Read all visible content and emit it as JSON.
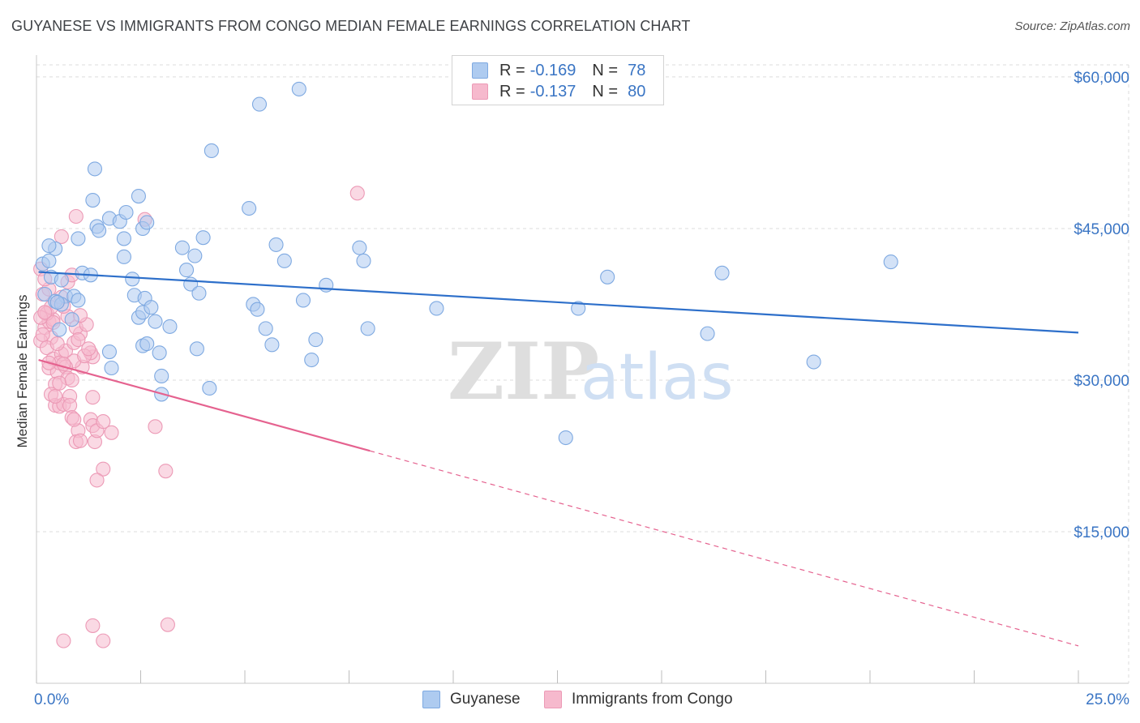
{
  "title": "GUYANESE VS IMMIGRANTS FROM CONGO MEDIAN FEMALE EARNINGS CORRELATION CHART",
  "source": "Source: ZipAtlas.com",
  "watermark": {
    "zip": "ZIP",
    "atlas": "atlas"
  },
  "colors": {
    "blue": "#3a75c4",
    "blue_fill": "#aecbf0",
    "blue_line": "#2d6fca",
    "pink": "#e8739a",
    "pink_fill": "#f6b9cd",
    "pink_line": "#e5628f",
    "grid": "#dcdcdc",
    "axis_text_blue": "#3a75c4"
  },
  "legend": {
    "rows": [
      {
        "r_label": "R =",
        "r_value": "-0.169",
        "n_label": "N =",
        "n_value": "78"
      },
      {
        "r_label": "R =",
        "r_value": "-0.137",
        "n_label": "N =",
        "n_value": "80"
      }
    ]
  },
  "bottom_legend": [
    "Guyanese",
    "Immigrants from Congo"
  ],
  "chart_data": {
    "type": "scatter",
    "title": "GUYANESE VS IMMIGRANTS FROM CONGO MEDIAN FEMALE EARNINGS CORRELATION CHART",
    "xlabel": "",
    "ylabel": "Median Female Earnings",
    "xlim": [
      0,
      25
    ],
    "ylim": [
      0,
      62000
    ],
    "x_tick_labels": [
      "0.0%",
      "25.0%"
    ],
    "y_ticks": [
      15000,
      30000,
      45000,
      60000
    ],
    "y_tick_labels": [
      "$15,000",
      "$30,000",
      "$45,000",
      "$60,000"
    ],
    "series": [
      {
        "name": "Guyanese",
        "R": -0.169,
        "N": 78,
        "trend": {
          "x0": 0.05,
          "y0": 40700,
          "x1": 25,
          "y1": 34700
        },
        "points": [
          [
            0.15,
            41500
          ],
          [
            0.3,
            41800
          ],
          [
            0.45,
            43000
          ],
          [
            0.3,
            43300
          ],
          [
            0.2,
            38500
          ],
          [
            0.35,
            40200
          ],
          [
            0.45,
            37800
          ],
          [
            0.6,
            39900
          ],
          [
            0.7,
            38300
          ],
          [
            0.9,
            38300
          ],
          [
            1.0,
            37900
          ],
          [
            0.55,
            35000
          ],
          [
            1.1,
            40600
          ],
          [
            1.3,
            40400
          ],
          [
            1.0,
            44000
          ],
          [
            1.45,
            45200
          ],
          [
            1.5,
            44800
          ],
          [
            1.35,
            47800
          ],
          [
            1.4,
            50900
          ],
          [
            1.75,
            46000
          ],
          [
            2.0,
            45700
          ],
          [
            2.15,
            46600
          ],
          [
            2.1,
            44000
          ],
          [
            2.45,
            48200
          ],
          [
            2.55,
            45000
          ],
          [
            2.65,
            45600
          ],
          [
            2.1,
            42200
          ],
          [
            2.35,
            38400
          ],
          [
            2.6,
            38100
          ],
          [
            2.45,
            36200
          ],
          [
            2.55,
            36700
          ],
          [
            2.75,
            37200
          ],
          [
            2.85,
            35800
          ],
          [
            2.55,
            33400
          ],
          [
            2.65,
            33600
          ],
          [
            2.95,
            32700
          ],
          [
            3.2,
            35300
          ],
          [
            3.0,
            30400
          ],
          [
            3.0,
            28600
          ],
          [
            3.5,
            43100
          ],
          [
            3.6,
            40900
          ],
          [
            3.8,
            42300
          ],
          [
            4.0,
            44100
          ],
          [
            3.7,
            39500
          ],
          [
            3.9,
            38600
          ],
          [
            3.85,
            33100
          ],
          [
            4.2,
            52700
          ],
          [
            4.15,
            29200
          ],
          [
            5.1,
            47000
          ],
          [
            5.35,
            57300
          ],
          [
            5.2,
            37500
          ],
          [
            5.3,
            37000
          ],
          [
            5.5,
            35100
          ],
          [
            5.65,
            33500
          ],
          [
            5.75,
            43400
          ],
          [
            5.95,
            41800
          ],
          [
            6.3,
            58800
          ],
          [
            6.4,
            37900
          ],
          [
            6.6,
            32000
          ],
          [
            6.7,
            34000
          ],
          [
            6.95,
            39400
          ],
          [
            7.75,
            43100
          ],
          [
            7.85,
            41800
          ],
          [
            7.95,
            35100
          ],
          [
            9.6,
            37100
          ],
          [
            12.7,
            24300
          ],
          [
            13.0,
            37100
          ],
          [
            13.7,
            40200
          ],
          [
            16.1,
            34600
          ],
          [
            16.45,
            40600
          ],
          [
            18.65,
            31800
          ],
          [
            20.5,
            41700
          ],
          [
            0.85,
            36000
          ],
          [
            1.75,
            32800
          ],
          [
            1.8,
            31200
          ],
          [
            2.3,
            40000
          ],
          [
            0.6,
            37500
          ],
          [
            0.5,
            37700
          ]
        ]
      },
      {
        "name": "Immigrants from Congo",
        "R": -0.137,
        "N": 80,
        "trend": {
          "x0": 0.05,
          "y0": 32000,
          "x1": 8.0,
          "y1": 23000,
          "dash_x0": 8.0,
          "dash_y0": 23000,
          "dash_x1": 25,
          "dash_y1": 3700
        },
        "points": [
          [
            0.1,
            41000
          ],
          [
            0.15,
            38500
          ],
          [
            0.2,
            36700
          ],
          [
            0.2,
            35200
          ],
          [
            0.3,
            35800
          ],
          [
            0.35,
            34200
          ],
          [
            0.1,
            33900
          ],
          [
            0.25,
            33200
          ],
          [
            0.4,
            32100
          ],
          [
            0.3,
            31200
          ],
          [
            0.5,
            30800
          ],
          [
            0.6,
            32600
          ],
          [
            0.7,
            32900
          ],
          [
            0.55,
            31700
          ],
          [
            0.45,
            29600
          ],
          [
            0.35,
            28600
          ],
          [
            0.45,
            27500
          ],
          [
            0.55,
            27400
          ],
          [
            0.65,
            27600
          ],
          [
            0.8,
            28400
          ],
          [
            0.8,
            27500
          ],
          [
            0.85,
            26300
          ],
          [
            1.0,
            25000
          ],
          [
            0.95,
            23900
          ],
          [
            1.05,
            24000
          ],
          [
            1.3,
            26100
          ],
          [
            1.35,
            25500
          ],
          [
            1.4,
            23900
          ],
          [
            1.45,
            25000
          ],
          [
            1.6,
            25900
          ],
          [
            1.8,
            24800
          ],
          [
            1.6,
            21200
          ],
          [
            1.45,
            20100
          ],
          [
            1.35,
            28300
          ],
          [
            1.35,
            32300
          ],
          [
            1.3,
            32700
          ],
          [
            1.1,
            31300
          ],
          [
            0.9,
            33700
          ],
          [
            1.05,
            34600
          ],
          [
            0.95,
            35200
          ],
          [
            0.75,
            36300
          ],
          [
            0.65,
            37300
          ],
          [
            0.5,
            37700
          ],
          [
            0.4,
            36000
          ],
          [
            0.3,
            39000
          ],
          [
            0.6,
            44200
          ],
          [
            0.95,
            46200
          ],
          [
            0.75,
            39700
          ],
          [
            0.85,
            40400
          ],
          [
            0.25,
            36600
          ],
          [
            0.5,
            33600
          ],
          [
            0.15,
            34500
          ],
          [
            0.6,
            38200
          ],
          [
            0.2,
            40000
          ],
          [
            0.35,
            37200
          ],
          [
            0.4,
            35700
          ],
          [
            0.1,
            36200
          ],
          [
            0.9,
            31900
          ],
          [
            1.15,
            32400
          ],
          [
            0.7,
            31300
          ],
          [
            2.6,
            45900
          ],
          [
            2.85,
            25400
          ],
          [
            3.1,
            21000
          ],
          [
            3.15,
            5800
          ],
          [
            7.7,
            48500
          ],
          [
            1.35,
            5700
          ],
          [
            0.65,
            4200
          ],
          [
            1.6,
            4200
          ],
          [
            0.3,
            31700
          ],
          [
            0.45,
            28400
          ],
          [
            0.75,
            30200
          ],
          [
            1.0,
            34000
          ],
          [
            1.2,
            35500
          ],
          [
            0.55,
            29700
          ],
          [
            0.9,
            26100
          ],
          [
            1.25,
            33100
          ],
          [
            0.2,
            36700
          ],
          [
            0.85,
            30000
          ],
          [
            0.65,
            31600
          ],
          [
            1.05,
            36400
          ]
        ]
      }
    ]
  }
}
